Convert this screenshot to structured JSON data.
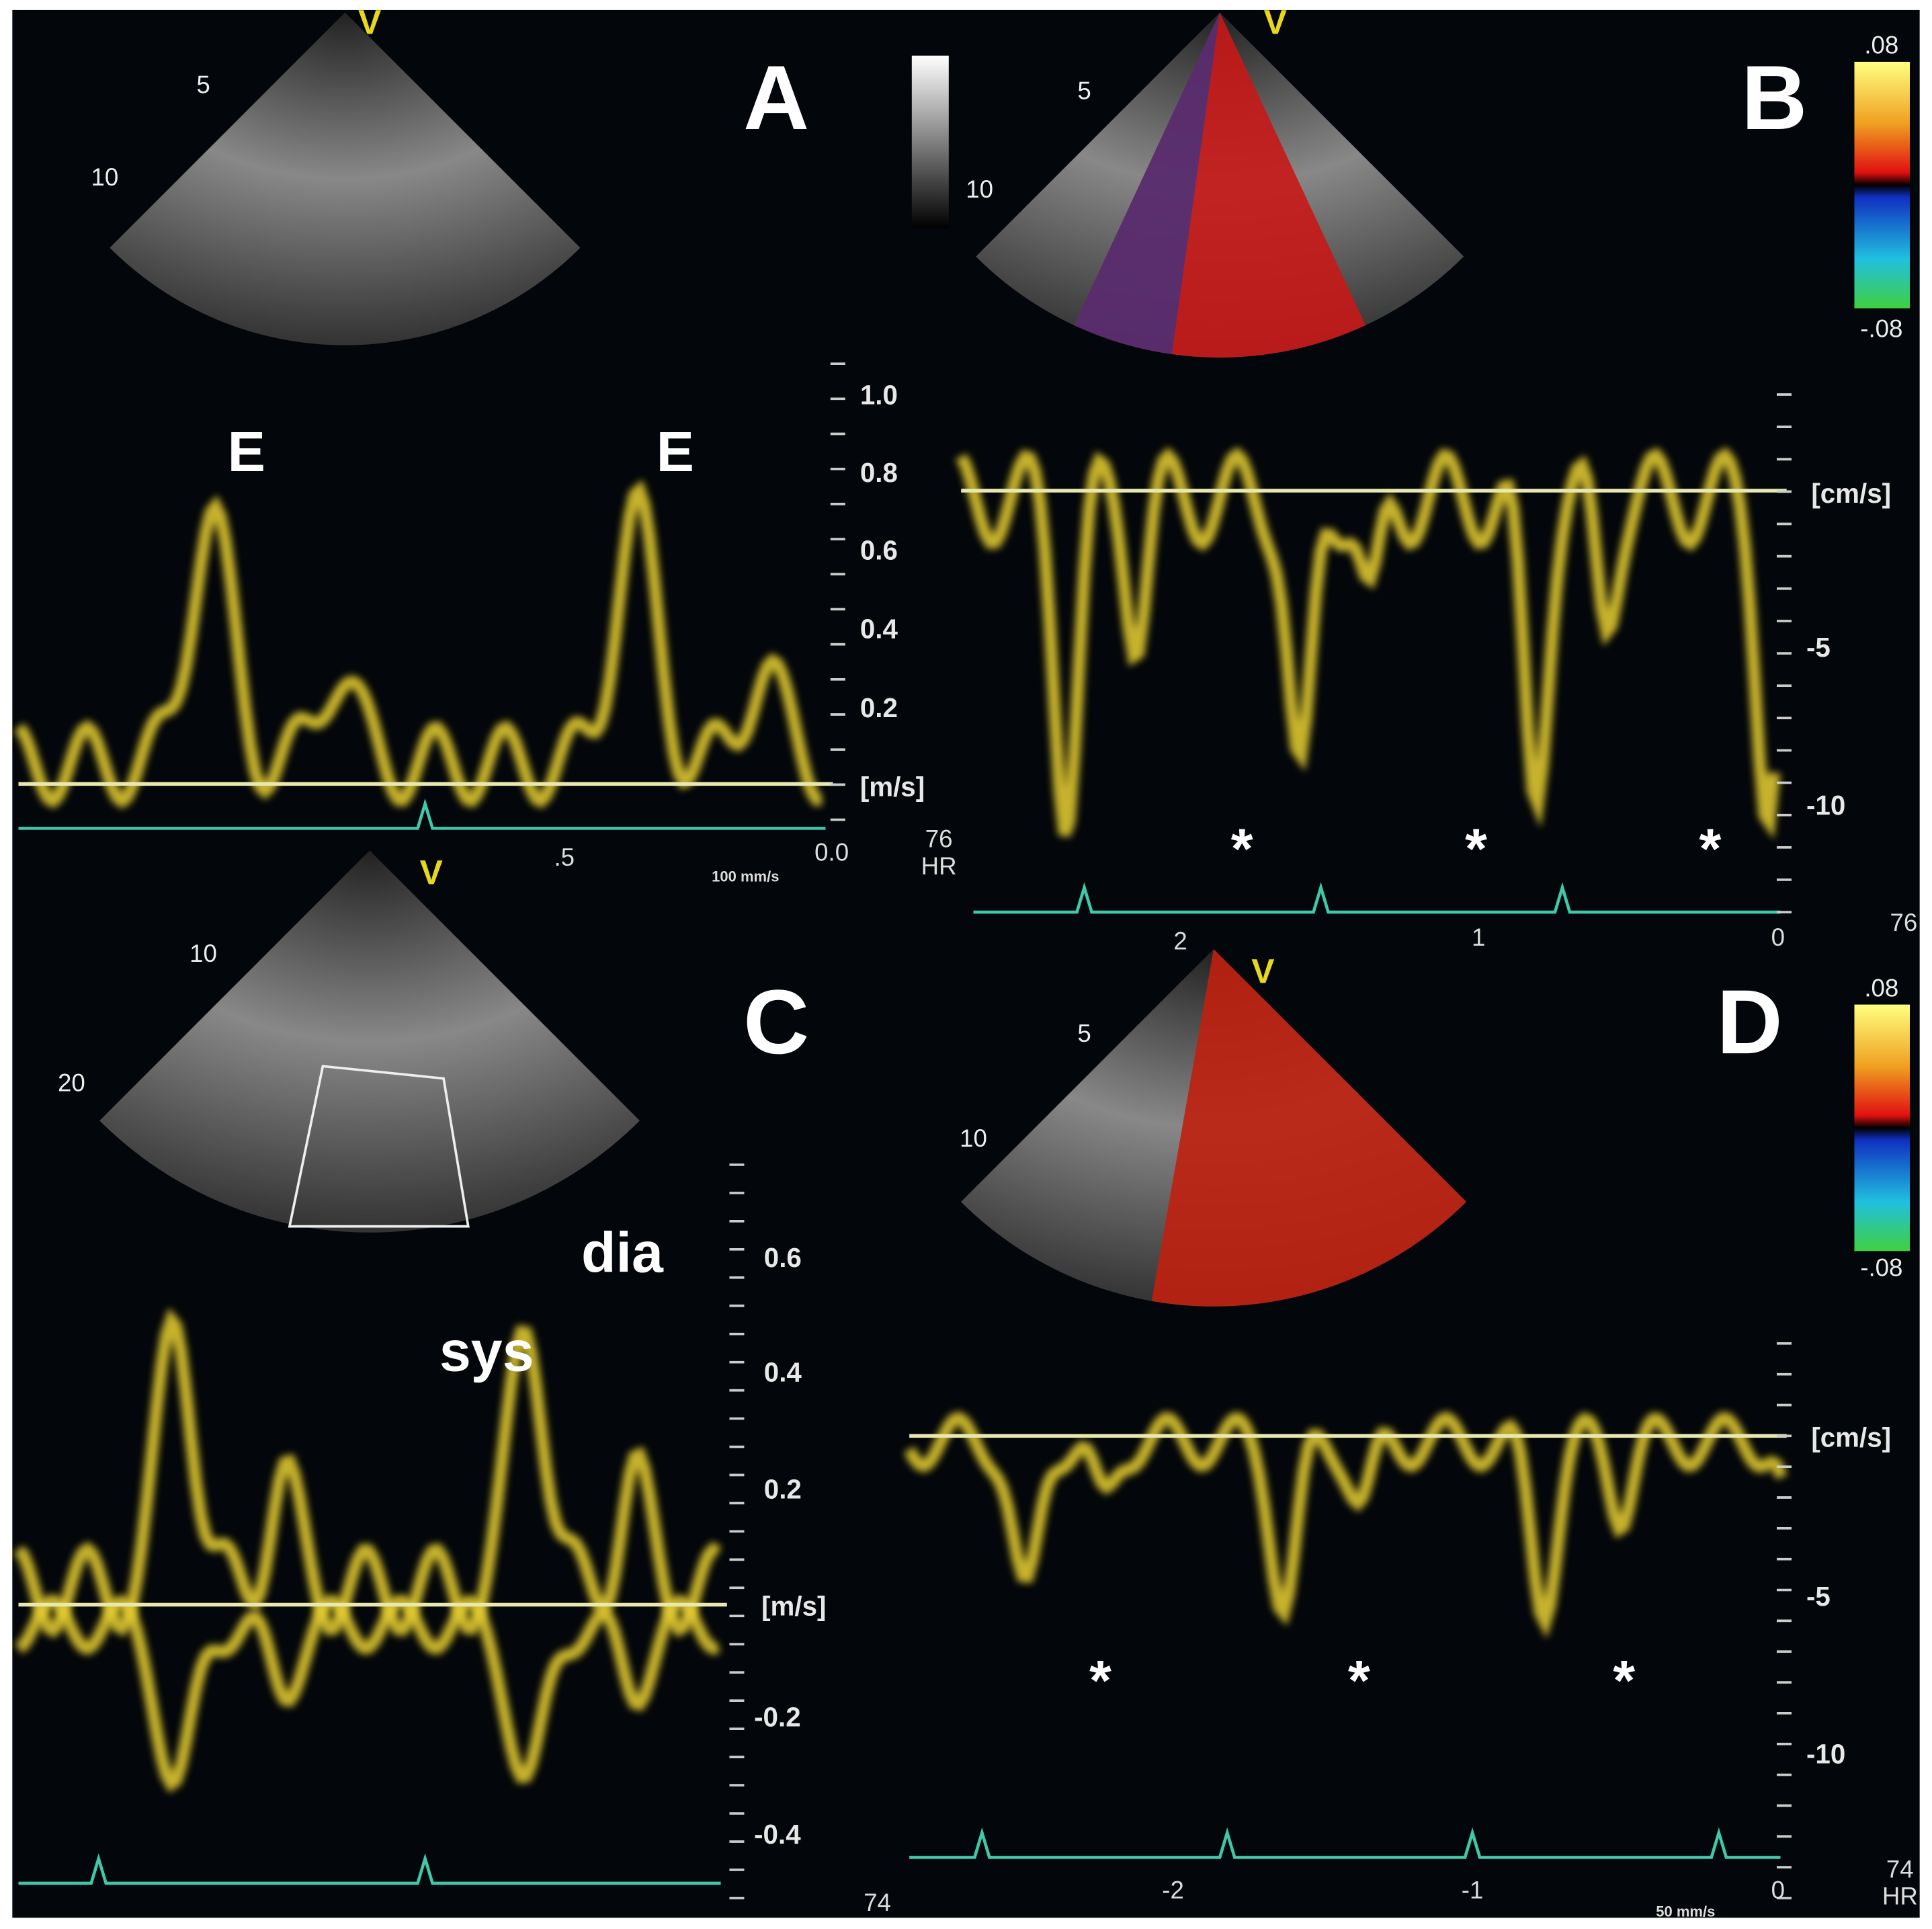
{
  "panels": [
    {
      "label": "A",
      "probe": "V",
      "depth_marks": [
        "5",
        "10"
      ],
      "annotations": [
        "E",
        "E"
      ],
      "velocity_scale": [
        "1.0",
        "0.8",
        "0.6",
        "0.4",
        "0.2"
      ],
      "unit": "[m/s]",
      "time_axis": [
        ".5",
        "0.0"
      ],
      "sweep": "100 mm/s",
      "hr": "76",
      "hr_label": "HR"
    },
    {
      "label": "B",
      "probe": "V",
      "depth_marks": [
        "5",
        "10"
      ],
      "color_scale": [
        ".08",
        "-.08"
      ],
      "annotations": [
        "*",
        "*",
        "*"
      ],
      "velocity_scale": [
        "-5",
        "-10"
      ],
      "unit": "[cm/s]",
      "time_axis": [
        "2",
        "1",
        "0"
      ],
      "hr": "76"
    },
    {
      "label": "C",
      "probe": "V",
      "depth_marks": [
        "10",
        "20"
      ],
      "annotations": [
        "dia",
        "sys"
      ],
      "velocity_scale": [
        "0.6",
        "0.4",
        "0.2",
        "-0.2",
        "-0.4"
      ],
      "unit": "[m/s]",
      "hr": "74"
    },
    {
      "label": "D",
      "probe": "V",
      "depth_marks": [
        "5",
        "10"
      ],
      "color_scale": [
        ".08",
        "-.08"
      ],
      "annotations": [
        "*",
        "*",
        "*"
      ],
      "velocity_scale": [
        "-5",
        "-10"
      ],
      "unit": "[cm/s]",
      "time_axis": [
        "-2",
        "-1",
        "0"
      ],
      "sweep": "50 mm/s",
      "hr": "74",
      "hr_label": "HR"
    }
  ]
}
